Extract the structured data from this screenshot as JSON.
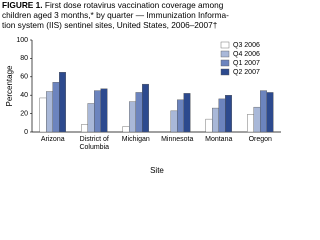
{
  "chart_data": {
    "type": "bar",
    "figure_label": "FIGURE 1.",
    "title_lines": [
      "First dose rotavirus vaccination coverage among",
      "children aged 3 months,* by quarter — Immunization Informa-",
      "tion system (IIS) sentinel sites, United States, 2006–2007†"
    ],
    "x_label": "Site",
    "y_label": "Percentage",
    "categories": [
      "Arizona",
      "District of Columbia",
      "Michigan",
      "Minnesota",
      "Montana",
      "Oregon"
    ],
    "series": [
      {
        "name": "Q3 2006",
        "color": "#ffffff",
        "values": [
          37,
          8,
          6,
          null,
          14,
          19
        ]
      },
      {
        "name": "Q4 2006",
        "color": "#a9b8d8",
        "values": [
          44,
          31,
          33,
          23,
          26,
          27
        ]
      },
      {
        "name": "Q1 2007",
        "color": "#6c84be",
        "values": [
          54,
          45,
          43,
          35,
          36,
          45
        ]
      },
      {
        "name": "Q2 2007",
        "color": "#2d4a8e",
        "values": [
          65,
          47,
          52,
          42,
          40,
          43
        ]
      }
    ],
    "ylim": [
      0,
      100
    ],
    "yticks": [
      0,
      20,
      40,
      60,
      80,
      100
    ],
    "legend": "top-right"
  }
}
